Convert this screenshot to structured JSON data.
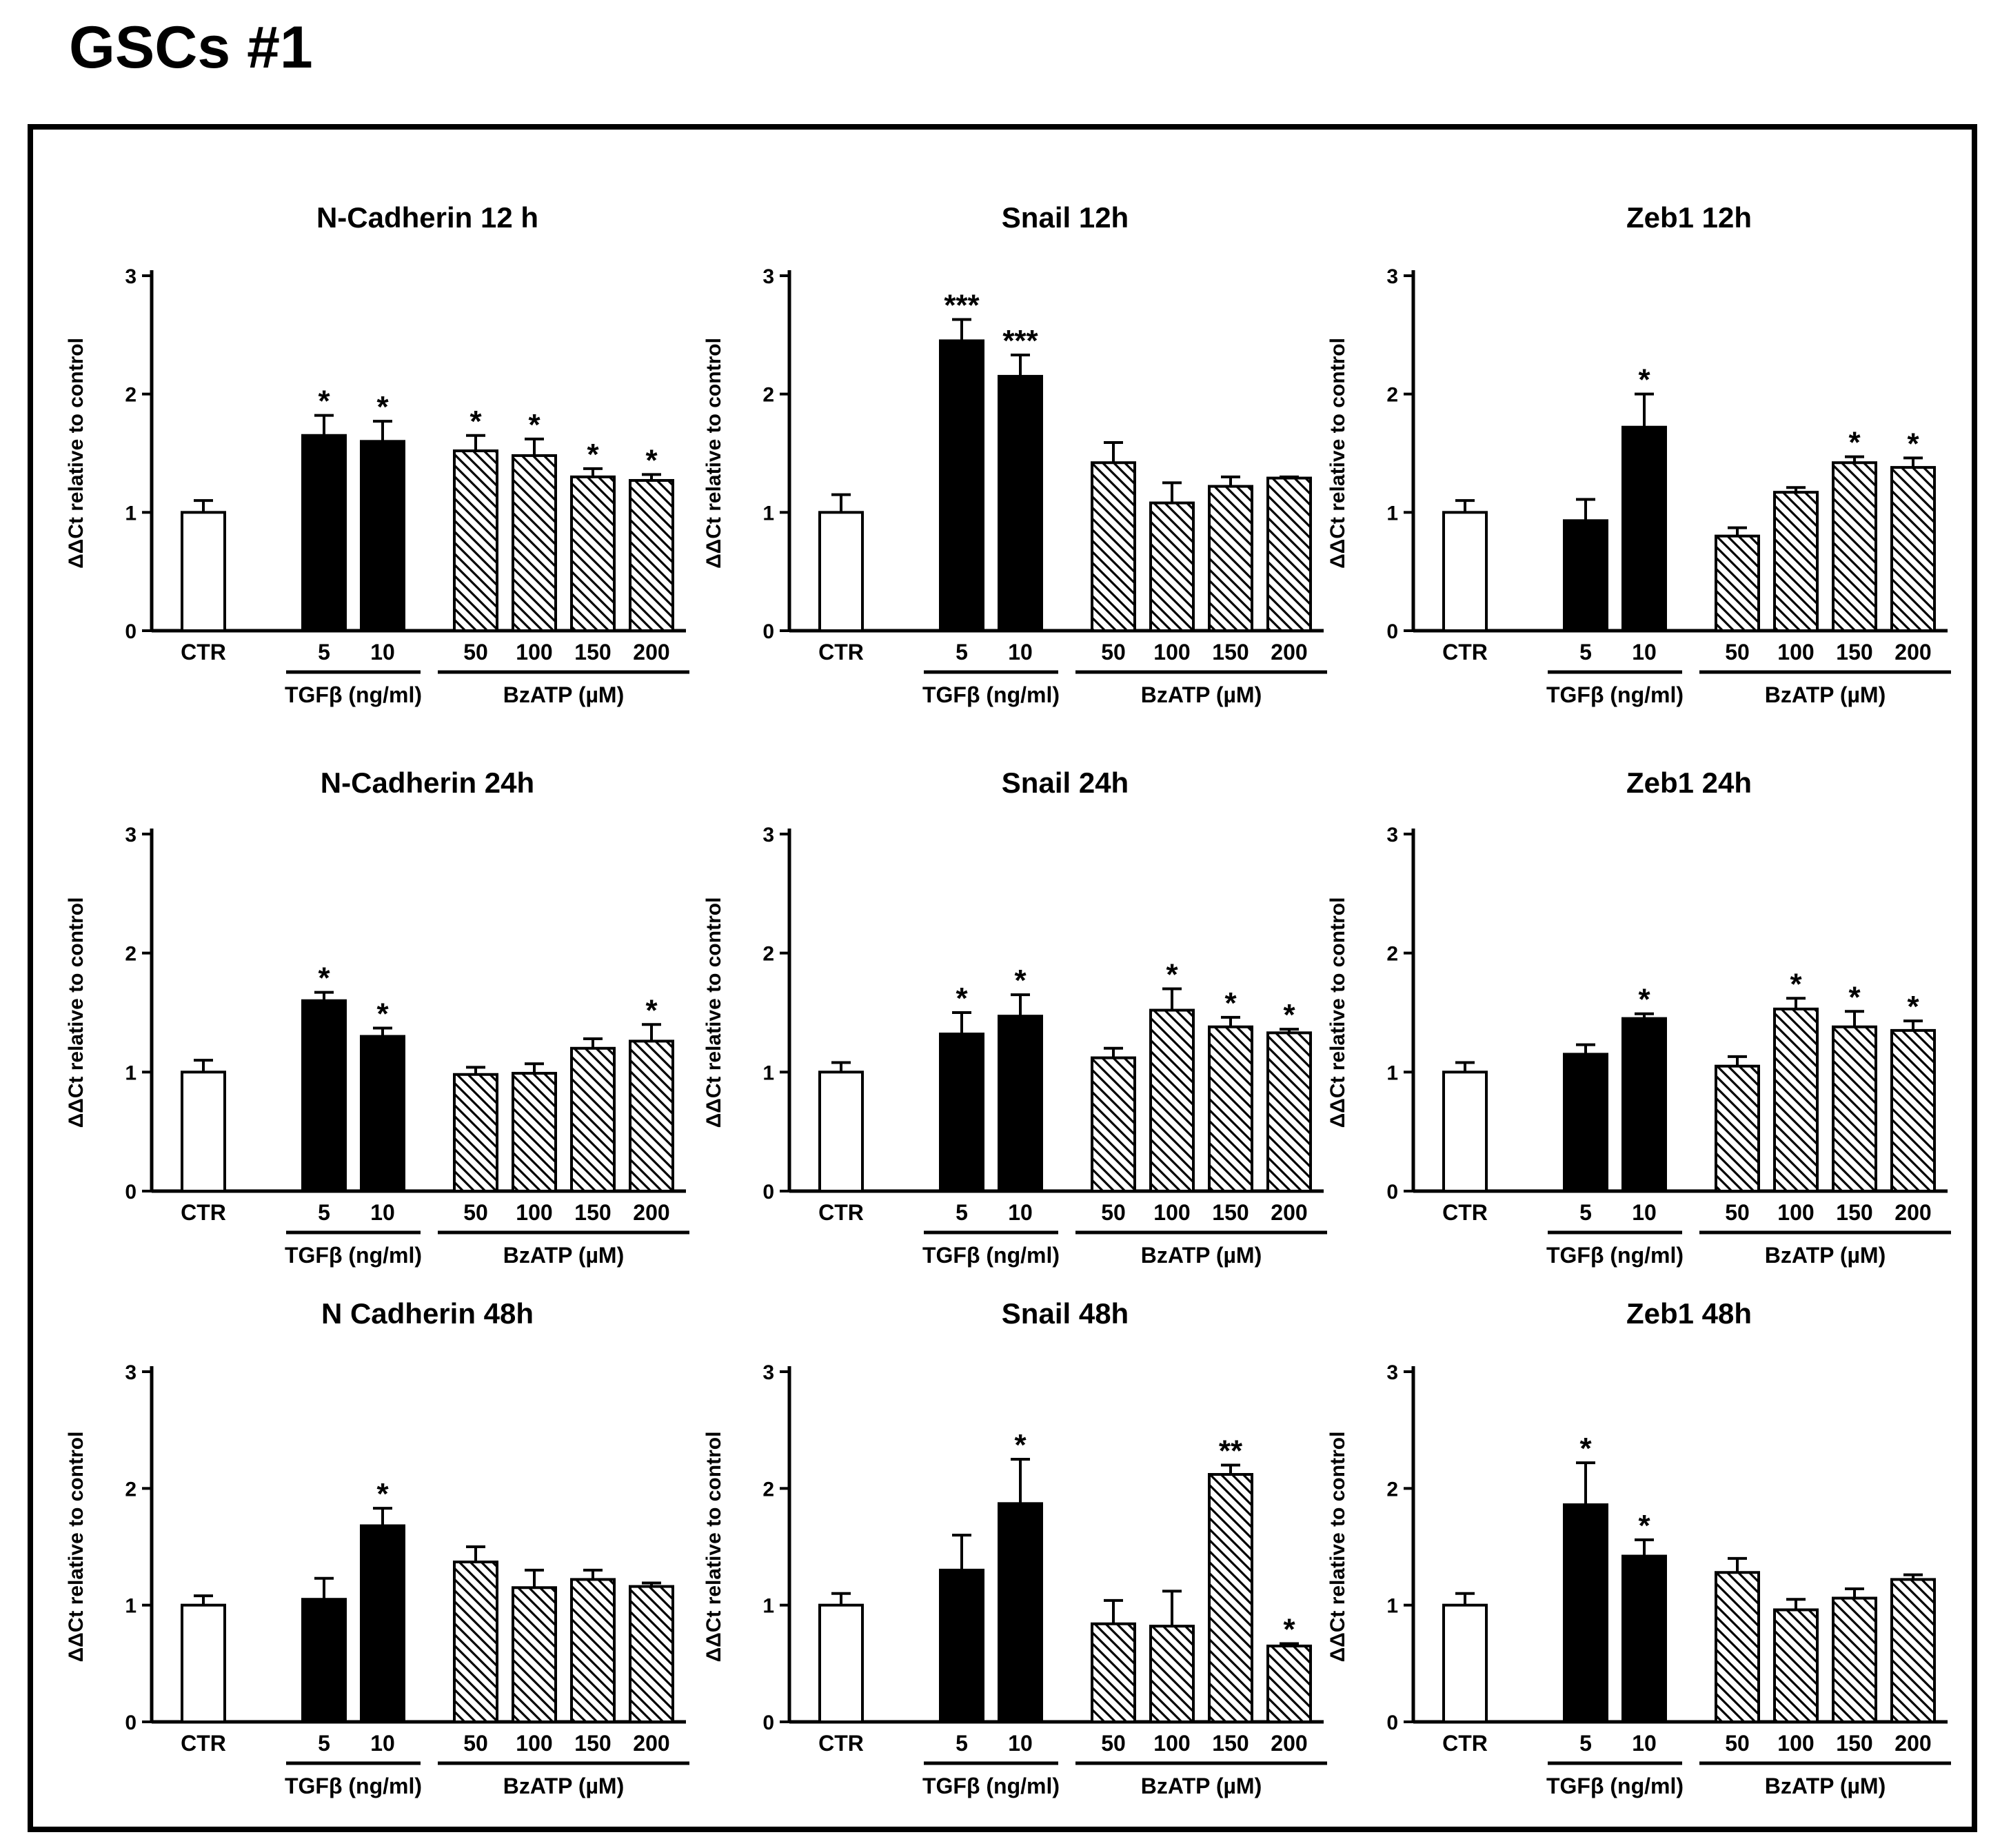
{
  "page_title": "GSCs #1",
  "colors": {
    "bar_open": "#ffffff",
    "bar_solid": "#000000",
    "hatch": "#000000",
    "axis": "#000000"
  },
  "ylabel": "ΔΔCt relative to control",
  "chart_data": [
    {
      "type": "bar",
      "title": "N-Cadherin 12 h",
      "ylabel": "ΔΔCt relative to control",
      "ylim": [
        0,
        3
      ],
      "yticks": [
        "0",
        "1",
        "2",
        "3"
      ],
      "categories": [
        "CTR",
        "5",
        "10",
        "50",
        "100",
        "150",
        "200"
      ],
      "values": [
        1.0,
        1.65,
        1.6,
        1.52,
        1.48,
        1.3,
        1.27
      ],
      "errors": [
        0.1,
        0.17,
        0.17,
        0.13,
        0.14,
        0.07,
        0.05
      ],
      "significance": [
        "",
        "*",
        "*",
        "*",
        "*",
        "*",
        "*"
      ],
      "groups": [
        {
          "label": "TGFβ (ng/ml)",
          "members": [
            1,
            2
          ]
        },
        {
          "label": "BzATP (µM)",
          "members": [
            3,
            4,
            5,
            6
          ]
        }
      ]
    },
    {
      "type": "bar",
      "title": "Snail 12h",
      "ylabel": "ΔΔCt relative to control",
      "ylim": [
        0,
        3
      ],
      "yticks": [
        "0",
        "1",
        "2",
        "3"
      ],
      "categories": [
        "CTR",
        "5",
        "10",
        "50",
        "100",
        "150",
        "200"
      ],
      "values": [
        1.0,
        2.45,
        2.15,
        1.42,
        1.08,
        1.22,
        1.29
      ],
      "errors": [
        0.15,
        0.18,
        0.18,
        0.17,
        0.17,
        0.08,
        0.01
      ],
      "significance": [
        "",
        "***",
        "***",
        "",
        "",
        "",
        ""
      ],
      "groups": [
        {
          "label": "TGFβ (ng/ml)",
          "members": [
            1,
            2
          ]
        },
        {
          "label": "BzATP (µM)",
          "members": [
            3,
            4,
            5,
            6
          ]
        }
      ]
    },
    {
      "type": "bar",
      "title": "Zeb1 12h",
      "ylabel": "ΔΔCt relative to control",
      "ylim": [
        0,
        3
      ],
      "yticks": [
        "0",
        "1",
        "2",
        "3"
      ],
      "categories": [
        "CTR",
        "5",
        "10",
        "50",
        "100",
        "150",
        "200"
      ],
      "values": [
        1.0,
        0.93,
        1.72,
        0.8,
        1.17,
        1.42,
        1.38
      ],
      "errors": [
        0.1,
        0.18,
        0.28,
        0.07,
        0.04,
        0.05,
        0.08
      ],
      "significance": [
        "",
        "",
        "*",
        "",
        "",
        "*",
        "*"
      ],
      "groups": [
        {
          "label": "TGFβ (ng/ml)",
          "members": [
            1,
            2
          ]
        },
        {
          "label": "BzATP (µM)",
          "members": [
            3,
            4,
            5,
            6
          ]
        }
      ]
    },
    {
      "type": "bar",
      "title": "N-Cadherin 24h",
      "ylabel": "ΔΔCt relative to control",
      "ylim": [
        0,
        3
      ],
      "yticks": [
        "0",
        "1",
        "2",
        "3"
      ],
      "categories": [
        "CTR",
        "5",
        "10",
        "50",
        "100",
        "150",
        "200"
      ],
      "values": [
        1.0,
        1.6,
        1.3,
        0.98,
        0.99,
        1.2,
        1.26
      ],
      "errors": [
        0.1,
        0.07,
        0.07,
        0.06,
        0.08,
        0.08,
        0.14
      ],
      "significance": [
        "",
        "*",
        "*",
        "",
        "",
        "",
        "*"
      ],
      "groups": [
        {
          "label": "TGFβ (ng/ml)",
          "members": [
            1,
            2
          ]
        },
        {
          "label": "BzATP (µM)",
          "members": [
            3,
            4,
            5,
            6
          ]
        }
      ]
    },
    {
      "type": "bar",
      "title": "Snail 24h",
      "ylabel": "ΔΔCt relative to control",
      "ylim": [
        0,
        3
      ],
      "yticks": [
        "0",
        "1",
        "2",
        "3"
      ],
      "categories": [
        "CTR",
        "5",
        "10",
        "50",
        "100",
        "150",
        "200"
      ],
      "values": [
        1.0,
        1.32,
        1.47,
        1.12,
        1.52,
        1.38,
        1.33
      ],
      "errors": [
        0.08,
        0.18,
        0.18,
        0.08,
        0.18,
        0.08,
        0.03
      ],
      "significance": [
        "",
        "*",
        "*",
        "",
        "*",
        "*",
        "*"
      ],
      "groups": [
        {
          "label": "TGFβ (ng/ml)",
          "members": [
            1,
            2
          ]
        },
        {
          "label": "BzATP (µM)",
          "members": [
            3,
            4,
            5,
            6
          ]
        }
      ]
    },
    {
      "type": "bar",
      "title": "Zeb1 24h",
      "ylabel": "ΔΔCt relative to control",
      "ylim": [
        0,
        3
      ],
      "yticks": [
        "0",
        "1",
        "2",
        "3"
      ],
      "categories": [
        "CTR",
        "5",
        "10",
        "50",
        "100",
        "150",
        "200"
      ],
      "values": [
        1.0,
        1.15,
        1.45,
        1.05,
        1.53,
        1.38,
        1.35
      ],
      "errors": [
        0.08,
        0.08,
        0.04,
        0.08,
        0.09,
        0.13,
        0.08
      ],
      "significance": [
        "",
        "",
        "*",
        "",
        "*",
        "*",
        "*"
      ],
      "groups": [
        {
          "label": "TGFβ (ng/ml)",
          "members": [
            1,
            2
          ]
        },
        {
          "label": "BzATP (µM)",
          "members": [
            3,
            4,
            5,
            6
          ]
        }
      ]
    },
    {
      "type": "bar",
      "title": "N Cadherin 48h",
      "ylabel": "ΔΔCt relative to control",
      "ylim": [
        0,
        3
      ],
      "yticks": [
        "0",
        "1",
        "2",
        "3"
      ],
      "categories": [
        "CTR",
        "5",
        "10",
        "50",
        "100",
        "150",
        "200"
      ],
      "values": [
        1.0,
        1.05,
        1.68,
        1.37,
        1.15,
        1.22,
        1.16
      ],
      "errors": [
        0.08,
        0.18,
        0.15,
        0.13,
        0.15,
        0.08,
        0.03
      ],
      "significance": [
        "",
        "",
        "*",
        "",
        "",
        "",
        ""
      ],
      "groups": [
        {
          "label": "TGFβ (ng/ml)",
          "members": [
            1,
            2
          ]
        },
        {
          "label": "BzATP (µM)",
          "members": [
            3,
            4,
            5,
            6
          ]
        }
      ]
    },
    {
      "type": "bar",
      "title": "Snail 48h",
      "ylabel": "ΔΔCt relative to control",
      "ylim": [
        0,
        3
      ],
      "yticks": [
        "0",
        "1",
        "2",
        "3"
      ],
      "categories": [
        "CTR",
        "5",
        "10",
        "50",
        "100",
        "150",
        "200"
      ],
      "values": [
        1.0,
        1.3,
        1.87,
        0.84,
        0.82,
        2.12,
        0.65
      ],
      "errors": [
        0.1,
        0.3,
        0.38,
        0.2,
        0.3,
        0.08,
        0.02
      ],
      "significance": [
        "",
        "",
        "*",
        "",
        "",
        "**",
        "*"
      ],
      "groups": [
        {
          "label": "TGFβ (ng/ml)",
          "members": [
            1,
            2
          ]
        },
        {
          "label": "BzATP (µM)",
          "members": [
            3,
            4,
            5,
            6
          ]
        }
      ]
    },
    {
      "type": "bar",
      "title": "Zeb1 48h",
      "ylabel": "ΔΔCt relative to control",
      "ylim": [
        0,
        3
      ],
      "yticks": [
        "0",
        "1",
        "2",
        "3"
      ],
      "categories": [
        "CTR",
        "5",
        "10",
        "50",
        "100",
        "150",
        "200"
      ],
      "values": [
        1.0,
        1.86,
        1.42,
        1.28,
        0.96,
        1.06,
        1.22
      ],
      "errors": [
        0.1,
        0.36,
        0.14,
        0.12,
        0.09,
        0.08,
        0.04
      ],
      "significance": [
        "",
        "*",
        "*",
        "",
        "",
        "",
        ""
      ],
      "groups": [
        {
          "label": "TGFβ (ng/ml)",
          "members": [
            1,
            2
          ]
        },
        {
          "label": "BzATP (µM)",
          "members": [
            3,
            4,
            5,
            6
          ]
        }
      ]
    }
  ]
}
